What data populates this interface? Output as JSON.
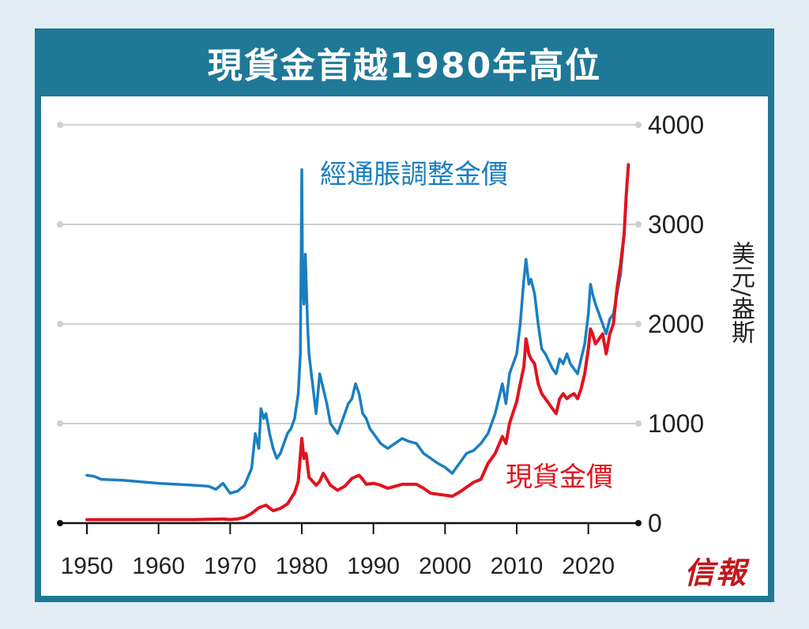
{
  "title": "現貨金首越1980年高位",
  "unit_label": "美元/盎斯",
  "brand": "信報",
  "colors": {
    "frame": "#1f7896",
    "spot": "#e0141e",
    "adjusted": "#1a7fc0"
  },
  "chart_data": {
    "type": "line",
    "title": "現貨金首越1980年高位",
    "ylabel": "美元/盎斯",
    "xlabel": "",
    "ylim": [
      0,
      4000
    ],
    "xlim": [
      1950,
      2025
    ],
    "y_ticks": [
      0,
      1000,
      2000,
      3000,
      4000
    ],
    "x_ticks": [
      1950,
      1960,
      1970,
      1980,
      1990,
      2000,
      2010,
      2020
    ],
    "grid": true,
    "series": [
      {
        "name": "經通脹調整金價",
        "color": "#1a7fc0",
        "x": [
          1950,
          1951,
          1952,
          1955,
          1960,
          1965,
          1967,
          1968,
          1969,
          1970,
          1971,
          1972,
          1973,
          1973.5,
          1974,
          1974.3,
          1974.7,
          1975,
          1975.5,
          1976,
          1976.5,
          1977,
          1977.5,
          1978,
          1978.5,
          1979,
          1979.5,
          1979.8,
          1980,
          1980.1,
          1980.3,
          1980.5,
          1980.8,
          1981,
          1981.5,
          1982,
          1982.5,
          1983,
          1983.5,
          1984,
          1984.5,
          1985,
          1985.5,
          1986,
          1986.5,
          1987,
          1987.5,
          1988,
          1988.5,
          1989,
          1989.5,
          1990,
          1991,
          1992,
          1993,
          1994,
          1995,
          1996,
          1997,
          1998,
          1999,
          2000,
          2001,
          2002,
          2003,
          2004,
          2005,
          2006,
          2007,
          2008,
          2008.5,
          2009,
          2010,
          2010.5,
          2011,
          2011.3,
          2011.7,
          2012,
          2012.5,
          2013,
          2013.5,
          2014,
          2015,
          2015.5,
          2016,
          2016.5,
          2017,
          2017.5,
          2018,
          2018.5,
          2019,
          2019.5,
          2020,
          2020.3,
          2020.6,
          2021,
          2021.5,
          2022,
          2022.5,
          2023,
          2023.5,
          2024,
          2024.5,
          2025,
          2025.3,
          2025.6
        ],
        "values": [
          480,
          470,
          440,
          430,
          400,
          380,
          370,
          340,
          400,
          300,
          320,
          380,
          550,
          900,
          750,
          1150,
          1050,
          1100,
          900,
          750,
          650,
          700,
          800,
          900,
          950,
          1050,
          1300,
          1700,
          3550,
          2500,
          2200,
          2700,
          2000,
          1700,
          1400,
          1100,
          1500,
          1350,
          1200,
          1000,
          950,
          900,
          1000,
          1100,
          1200,
          1250,
          1400,
          1300,
          1100,
          1050,
          950,
          900,
          800,
          750,
          800,
          850,
          820,
          800,
          700,
          650,
          600,
          560,
          500,
          600,
          700,
          730,
          800,
          900,
          1100,
          1400,
          1200,
          1500,
          1700,
          2000,
          2450,
          2650,
          2400,
          2450,
          2300,
          2000,
          1750,
          1700,
          1550,
          1500,
          1650,
          1600,
          1700,
          1600,
          1550,
          1500,
          1650,
          1800,
          2100,
          2400,
          2300,
          2200,
          2100,
          2000,
          1900,
          2050,
          2100,
          2300,
          2500,
          2900,
          3300,
          3600
        ]
      },
      {
        "name": "現貨金價",
        "color": "#e0141e",
        "x": [
          1950,
          1955,
          1960,
          1965,
          1968,
          1969,
          1970,
          1971,
          1972,
          1973,
          1974,
          1975,
          1976,
          1977,
          1978,
          1979,
          1979.5,
          1980,
          1980.3,
          1980.6,
          1981,
          1982,
          1982.5,
          1983,
          1984,
          1985,
          1986,
          1987,
          1988,
          1988.5,
          1989,
          1990,
          1991,
          1992,
          1993,
          1994,
          1995,
          1996,
          1997,
          1998,
          1999,
          2000,
          2001,
          2002,
          2003,
          2004,
          2005,
          2006,
          2007,
          2008,
          2008.5,
          2009,
          2010,
          2010.5,
          2011,
          2011.3,
          2011.7,
          2012,
          2012.5,
          2013,
          2013.5,
          2014,
          2015,
          2015.5,
          2016,
          2016.5,
          2017,
          2017.5,
          2018,
          2018.5,
          2019,
          2019.5,
          2020,
          2020.3,
          2020.6,
          2021,
          2021.5,
          2022,
          2022.5,
          2023,
          2023.5,
          2024,
          2024.5,
          2025,
          2025.3,
          2025.6
        ],
        "values": [
          35,
          35,
          35,
          35,
          40,
          42,
          36,
          41,
          58,
          97,
          155,
          180,
          125,
          148,
          193,
          306,
          420,
          850,
          650,
          700,
          460,
          380,
          420,
          500,
          380,
          330,
          370,
          450,
          480,
          440,
          390,
          400,
          380,
          350,
          370,
          390,
          390,
          390,
          350,
          300,
          290,
          280,
          270,
          310,
          360,
          410,
          440,
          600,
          700,
          870,
          800,
          1000,
          1220,
          1400,
          1570,
          1850,
          1700,
          1650,
          1600,
          1400,
          1300,
          1250,
          1150,
          1100,
          1250,
          1300,
          1250,
          1280,
          1300,
          1250,
          1350,
          1500,
          1750,
          1950,
          1900,
          1800,
          1850,
          1900,
          1700,
          1900,
          2000,
          2350,
          2600,
          2900,
          3300,
          3600
        ]
      }
    ]
  }
}
